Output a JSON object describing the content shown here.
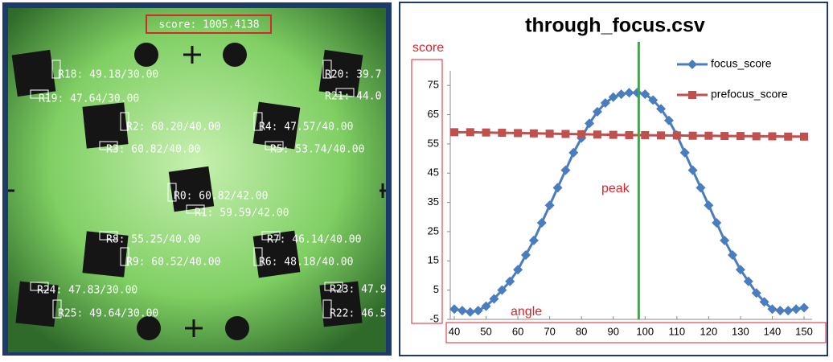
{
  "image": {
    "score_label": "score: 1005.4138",
    "labels": [
      "R18: 49.18/30.00",
      "R19: 47.64/30.00",
      "R20: 39.7",
      "R21: 44.0",
      "R2: 60.20/40.00",
      "R3: 60.82/40.00",
      "R4: 47.57/40.00",
      "R5: 53.74/40.00",
      "R0: 60.82/42.00",
      "R1: 59.59/42.00",
      "R8: 55.25/40.00",
      "R9: 60.52/40.00",
      "R7: 46.14/40.00",
      "R6: 48.18/40.00",
      "R24: 47.83/30.00",
      "R25: 49.64/30.00",
      "R23: 47.9",
      "R22: 46.5"
    ]
  },
  "chart_data": {
    "type": "line",
    "title": "through_focus.csv",
    "y_label": "score",
    "x_label": "angle",
    "annotation": "peak",
    "peak_x": 98,
    "peak_color": "#2db23a",
    "xlim": [
      40,
      150
    ],
    "xticks": [
      40,
      50,
      60,
      70,
      80,
      90,
      100,
      110,
      120,
      130,
      140,
      150
    ],
    "ylim": [
      -5,
      80
    ],
    "yticks": [
      -5,
      5,
      15,
      25,
      35,
      45,
      55,
      65,
      75
    ],
    "legend": "top-right",
    "series": [
      {
        "name": "focus_score",
        "color": "#4a7cc0",
        "marker": "diamond",
        "x": [
          40,
          42.5,
          45,
          47.5,
          50,
          52.5,
          55,
          57.5,
          60,
          62.5,
          65,
          67.5,
          70,
          72.5,
          75,
          77.5,
          80,
          82.5,
          85,
          87.5,
          90,
          92.5,
          95,
          97.5,
          100,
          102.5,
          105,
          107.5,
          110,
          112.5,
          115,
          117.5,
          120,
          122.5,
          125,
          127.5,
          130,
          132.5,
          135,
          137.5,
          140,
          142.5,
          145,
          147.5,
          150
        ],
        "values": [
          -1.5,
          -2,
          -2.5,
          -2,
          -0.5,
          2,
          5,
          8,
          12,
          17,
          22,
          28,
          34,
          40,
          46,
          52,
          57,
          62,
          66,
          69,
          71,
          72,
          72.5,
          72.5,
          72,
          70,
          67,
          63,
          58,
          52,
          46,
          40,
          34,
          28,
          22,
          17,
          12,
          8,
          4,
          1,
          -1.5,
          -2,
          -2,
          -1.5,
          -1
        ]
      },
      {
        "name": "prefocus_score",
        "color": "#c0504d",
        "marker": "square",
        "x": [
          40,
          45,
          50,
          55,
          60,
          65,
          70,
          75,
          80,
          85,
          90,
          95,
          100,
          105,
          110,
          115,
          120,
          125,
          130,
          135,
          140,
          145,
          150
        ],
        "values": [
          59,
          59,
          58.9,
          58.8,
          58.7,
          58.6,
          58.5,
          58.4,
          58.3,
          58.2,
          58.1,
          58,
          58,
          57.9,
          57.9,
          57.8,
          57.8,
          57.7,
          57.7,
          57.6,
          57.6,
          57.5,
          57.5
        ]
      }
    ]
  }
}
